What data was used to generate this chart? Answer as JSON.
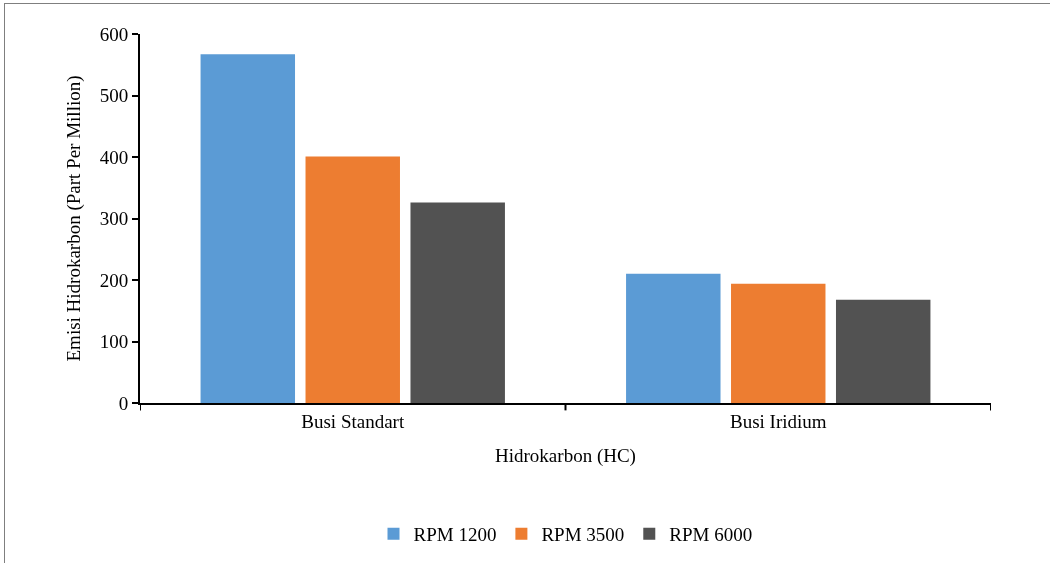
{
  "chart_data": {
    "type": "bar",
    "xlabel": "Hidrokarbon (HC)",
    "ylabel": "Emisi Hidrokarbon (Part Per Million)",
    "categories": [
      "Busi Standart",
      "Busi Iridium"
    ],
    "series": [
      {
        "name": "RPM 1200",
        "color": "#5b9bd5",
        "values": [
          567,
          210
        ]
      },
      {
        "name": "RPM 3500",
        "color": "#ed7d31",
        "values": [
          401,
          194
        ]
      },
      {
        "name": "RPM 6000",
        "color": "#525252",
        "values": [
          326,
          168
        ]
      }
    ],
    "ylim": [
      0,
      600
    ],
    "yticks": [
      0,
      100,
      200,
      300,
      400,
      500,
      600
    ],
    "grid": false,
    "legend": "bottom"
  }
}
